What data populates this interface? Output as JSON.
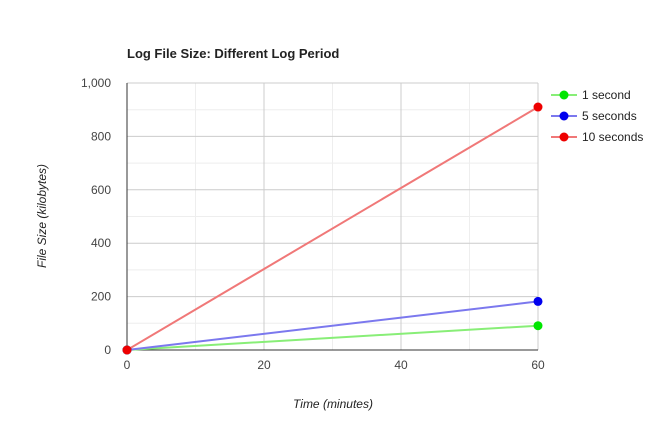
{
  "chart_data": {
    "type": "line",
    "title": "Log File Size: Different Log Period",
    "xlabel": "Time (minutes)",
    "ylabel": "File Size (kilobytes)",
    "xlim": [
      0,
      60
    ],
    "ylim": [
      0,
      1000
    ],
    "x_ticks": [
      0,
      20,
      40,
      60
    ],
    "y_ticks": [
      0,
      200,
      400,
      600,
      800,
      1000
    ],
    "y_tick_labels": [
      "0",
      "200",
      "400",
      "600",
      "800",
      "1,000"
    ],
    "x_tick_labels": [
      "0",
      "20",
      "40",
      "60"
    ],
    "grid": true,
    "legend_position": "right",
    "series": [
      {
        "name": "1 second",
        "color": "#00e600",
        "line_color": "#88ee77",
        "x": [
          0,
          60
        ],
        "y": [
          0,
          91
        ]
      },
      {
        "name": "5 seconds",
        "color": "#0000ee",
        "line_color": "#7b78ee",
        "x": [
          0,
          60
        ],
        "y": [
          0,
          182
        ]
      },
      {
        "name": "10 seconds",
        "color": "#ee0000",
        "line_color": "#f07878",
        "x": [
          0,
          60
        ],
        "y": [
          0,
          910
        ]
      }
    ]
  }
}
